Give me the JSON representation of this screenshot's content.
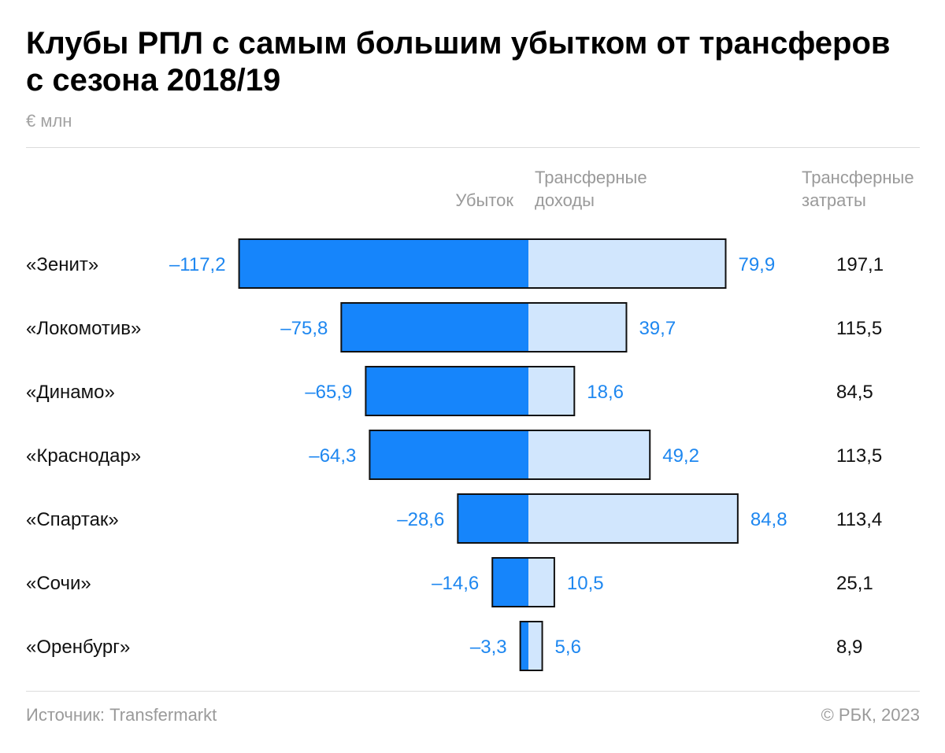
{
  "title": {
    "line1": "Клубы РПЛ с самым большим убытком от трансферов",
    "line2": "с сезона 2018/19"
  },
  "unit": "€ млн",
  "headers": {
    "loss": "Убыток",
    "income_line1": "Трансферные",
    "income_line2": "доходы",
    "spend_line1": "Трансферные",
    "spend_line2": "затраты"
  },
  "colors": {
    "loss": "#1685fb",
    "income": "#d1e6fd",
    "value_text": "#1e87f0",
    "outline": "#111111"
  },
  "chart_data": {
    "type": "bar",
    "title": "Клубы РПЛ с самым большим убытком от трансферов с сезона 2018/19",
    "unit": "€ млн",
    "categories": [
      "«Зенит»",
      "«Локомотив»",
      "«Динамо»",
      "«Краснодар»",
      "«Спартак»",
      "«Сочи»",
      "«Оренбург»"
    ],
    "series": [
      {
        "name": "Убыток",
        "values": [
          -117.2,
          -75.8,
          -65.9,
          -64.3,
          -28.6,
          -14.6,
          -3.3
        ]
      },
      {
        "name": "Трансферные доходы",
        "values": [
          79.9,
          39.7,
          18.6,
          49.2,
          84.8,
          10.5,
          5.6
        ]
      },
      {
        "name": "Трансферные затраты",
        "values": [
          197.1,
          115.5,
          84.5,
          113.5,
          113.4,
          25.1,
          8.9
        ]
      }
    ],
    "labels": {
      "loss": [
        "–117,2",
        "–75,8",
        "–65,9",
        "–64,3",
        "–28,6",
        "–14,6",
        "–3,3"
      ],
      "income": [
        "79,9",
        "39,7",
        "18,6",
        "49,2",
        "84,8",
        "10,5",
        "5,6"
      ],
      "spend": [
        "197,1",
        "115,5",
        "84,5",
        "113,5",
        "113,4",
        "25,1",
        "8,9"
      ]
    }
  },
  "footer": {
    "source": "Источник: Transfermarkt",
    "copyright": "© РБК, 2023"
  }
}
